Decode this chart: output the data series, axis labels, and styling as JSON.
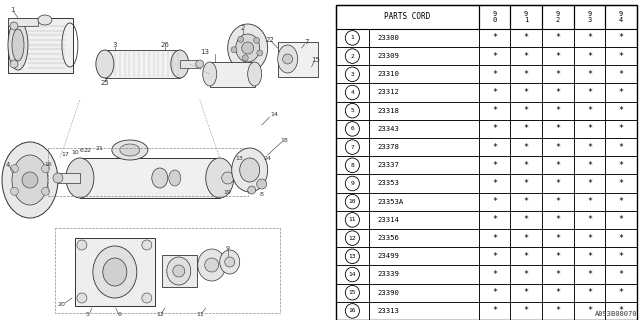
{
  "diagram_label": "A093B00070",
  "rows": [
    [
      "1",
      "23300"
    ],
    [
      "2",
      "23309"
    ],
    [
      "3",
      "23310"
    ],
    [
      "4",
      "23312"
    ],
    [
      "5",
      "23318"
    ],
    [
      "6",
      "23343"
    ],
    [
      "7",
      "23378"
    ],
    [
      "8",
      "23337"
    ],
    [
      "9",
      "23353"
    ],
    [
      "10",
      "23353A"
    ],
    [
      "11",
      "23314"
    ],
    [
      "12",
      "23356"
    ],
    [
      "13",
      "23499"
    ],
    [
      "14",
      "23339"
    ],
    [
      "15",
      "23390"
    ],
    [
      "16",
      "23313"
    ]
  ],
  "year_cols": [
    "9\n0",
    "9\n1",
    "9\n2",
    "9\n3",
    "9\n4"
  ],
  "bg_color": "#ffffff",
  "lc": "#000000",
  "tc": "#000000"
}
